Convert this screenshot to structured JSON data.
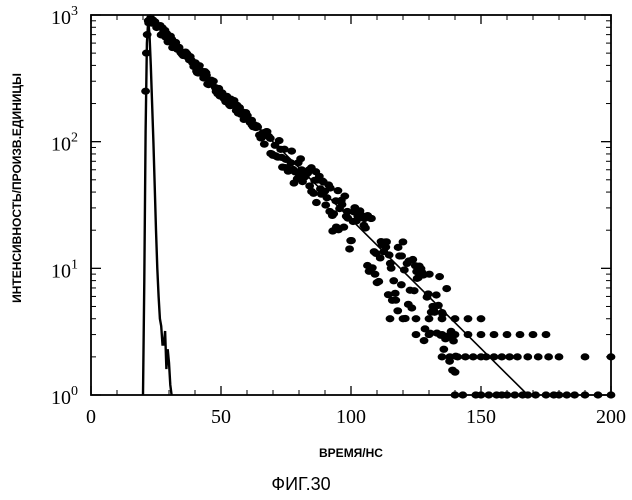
{
  "chart_data": {
    "type": "scatter",
    "xlabel": "ВРЕМЯ/НС",
    "ylabel": "ИНТЕНСИВНОСТЬ/ПРОИЗВ.ЕДИНИЦЫ",
    "caption": "ФИГ.30",
    "xlim": [
      0,
      200
    ],
    "ylim": [
      1,
      1000
    ],
    "yscale": "log",
    "grid": false,
    "x_ticks": [
      {
        "value": 0,
        "label": "0"
      },
      {
        "value": 50,
        "label": "50"
      },
      {
        "value": 100,
        "label": "100"
      },
      {
        "value": 150,
        "label": "150"
      },
      {
        "value": 200,
        "label": "200"
      }
    ],
    "y_ticks": [
      {
        "value": 1,
        "base": "10",
        "exp": "0"
      },
      {
        "value": 10,
        "base": "10",
        "exp": "1"
      },
      {
        "value": 100,
        "base": "10",
        "exp": "2"
      },
      {
        "value": 1000,
        "base": "10",
        "exp": "3"
      }
    ],
    "decay": {
      "peak_time": 22,
      "peak_intensity": 950,
      "lifetime_ns": 20.6
    },
    "fit_line": {
      "x": [
        22,
        168
      ],
      "y": [
        950,
        1
      ]
    },
    "irf": {
      "x": [
        20,
        20.5,
        21,
        21.5,
        22,
        22.5,
        23,
        23.5,
        24,
        24.5,
        25,
        25.5,
        26,
        26.5,
        27,
        27.5,
        28,
        28.5,
        29,
        29.5,
        30,
        30.5,
        31
      ],
      "y": [
        1,
        8,
        120,
        600,
        900,
        700,
        400,
        200,
        100,
        45,
        20,
        10,
        6,
        4,
        3.5,
        2.5,
        2.5,
        3.2,
        1.6,
        2.3,
        1.8,
        1.2,
        1
      ]
    },
    "sparse_points": {
      "x": [
        140,
        143,
        148,
        150,
        153,
        156,
        158,
        160,
        163,
        166,
        168,
        171,
        175,
        178,
        180,
        183,
        186,
        190,
        195,
        200,
        135,
        138,
        141,
        144,
        147,
        150,
        152,
        155,
        158,
        161,
        164,
        168,
        172,
        176,
        180,
        190,
        200,
        125,
        130,
        135,
        140,
        145,
        150,
        155,
        160,
        165,
        170,
        175,
        115,
        120,
        125,
        130,
        135,
        140,
        145,
        150
      ],
      "y": [
        1,
        1,
        1,
        1,
        1,
        1,
        1,
        1,
        1,
        1,
        1,
        1,
        1,
        1,
        1,
        1,
        1,
        1,
        1,
        1,
        2,
        2,
        2,
        2,
        2,
        2,
        2,
        2,
        2,
        2,
        2,
        2,
        2,
        2,
        2,
        2,
        2,
        3,
        3,
        3,
        3,
        3,
        3,
        3,
        3,
        3,
        3,
        3,
        4,
        4,
        4,
        4,
        4,
        4,
        4,
        4
      ]
    }
  }
}
